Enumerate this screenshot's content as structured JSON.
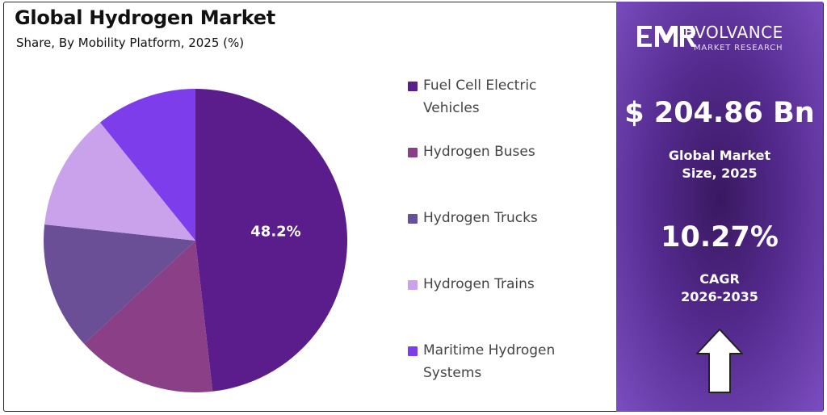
{
  "chart_data": {
    "type": "pie",
    "title": "Global Hydrogen Market",
    "subtitle": "Share, By Mobility Platform, 2025 (%)",
    "categories": [
      "Fuel Cell Electric Vehicles",
      "Hydrogen Buses",
      "Hydrogen Trucks",
      "Hydrogen Trains",
      "Maritime Hydrogen Systems"
    ],
    "values": [
      48.2,
      14.9,
      13.6,
      12.5,
      10.8
    ],
    "colors": [
      "#5c1d8c",
      "#8a3f86",
      "#6a4e96",
      "#caa2ec",
      "#7d3dea"
    ],
    "data_labels": [
      "48.2%",
      "",
      "",
      "",
      ""
    ],
    "legend_position": "right"
  },
  "legend": {
    "items": [
      {
        "label": "Fuel Cell Electric\nVehicles"
      },
      {
        "label": "Hydrogen Buses"
      },
      {
        "label": "Hydrogen Trucks"
      },
      {
        "label": "Hydrogen Trains"
      },
      {
        "label": "Maritime Hydrogen\nSystems"
      }
    ]
  },
  "panel": {
    "brand_name": "EVOLVANCE",
    "brand_sub": "MARKET RESEARCH",
    "logo_text": "EMR",
    "market_value": "$ 204.86 Bn",
    "market_label_1": "Global Market",
    "market_label_2": "Size, 2025",
    "cagr_value": "10.27%",
    "cagr_label_1": "CAGR",
    "cagr_label_2": "2026-2035",
    "background": "#5a2d93",
    "arrow_icon": "up-arrow-icon"
  }
}
